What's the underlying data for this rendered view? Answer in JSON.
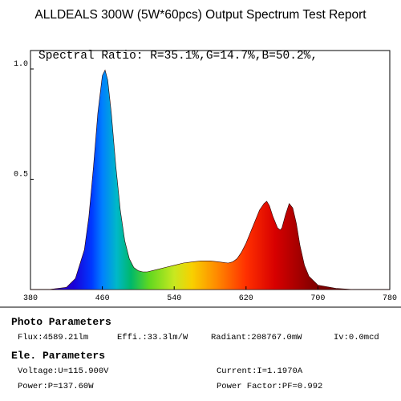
{
  "title": "ALLDEALS 300W (5W*60pcs) Output Spectrum Test Report",
  "spectral_ratio": "Spectral Ratio: R=35.1%,G=14.7%,B=50.2%,",
  "chart_data": {
    "type": "area",
    "xlim": [
      380,
      780
    ],
    "ylim": [
      0,
      1.0
    ],
    "x_ticks": [
      "380",
      "460",
      "540",
      "620",
      "700",
      "780"
    ],
    "y_ticks": [
      "1.0",
      "0.5"
    ],
    "grid": false,
    "series": [
      {
        "x": [
          380,
          400,
          420,
          430,
          440,
          445,
          450,
          455,
          460,
          463,
          466,
          470,
          475,
          480,
          485,
          490,
          495,
          500,
          505,
          510,
          520,
          530,
          540,
          550,
          560,
          570,
          580,
          590,
          600,
          605,
          610,
          615,
          620,
          625,
          630,
          635,
          640,
          643,
          646,
          650,
          655,
          658,
          660,
          664,
          668,
          672,
          676,
          680,
          685,
          690,
          700,
          720,
          740,
          760,
          780
        ],
        "y": [
          0.0,
          0.0,
          0.01,
          0.05,
          0.18,
          0.33,
          0.55,
          0.8,
          0.97,
          0.995,
          0.95,
          0.8,
          0.56,
          0.36,
          0.22,
          0.14,
          0.1,
          0.085,
          0.08,
          0.08,
          0.09,
          0.1,
          0.11,
          0.12,
          0.125,
          0.13,
          0.13,
          0.125,
          0.12,
          0.125,
          0.14,
          0.17,
          0.21,
          0.26,
          0.31,
          0.36,
          0.39,
          0.4,
          0.38,
          0.33,
          0.28,
          0.27,
          0.28,
          0.34,
          0.39,
          0.37,
          0.3,
          0.2,
          0.11,
          0.06,
          0.02,
          0.005,
          0.0,
          0.0,
          0.0
        ]
      }
    ]
  },
  "photo": {
    "heading": "Photo Parameters",
    "flux": "Flux:4589.21lm",
    "effi": "Effi.:33.3lm/W",
    "radiant": "Radiant:208767.0mW",
    "iv": "Iv:0.0mcd"
  },
  "ele": {
    "heading": "Ele. Parameters",
    "voltage": "Voltage:U=115.900V",
    "current": "Current:I=1.1970A",
    "power": "Power:P=137.60W",
    "pf": "Power Factor:PF=0.992"
  }
}
